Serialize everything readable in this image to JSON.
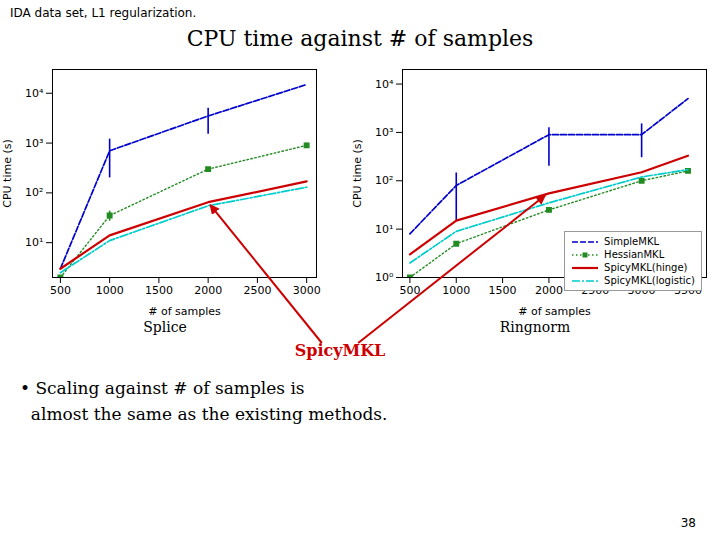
{
  "title": "CPU time against # of samples",
  "subtitle": "IDA data set, L1 regularization.",
  "annotations": [
    {
      "text": "SpicyMKL",
      "color": "#cc0000"
    },
    {
      "text": "• Scaling against # of samples is"
    },
    {
      "text": "  almost the same as the existing methods."
    },
    {
      "text": "38"
    }
  ],
  "chart_data": [
    {
      "type": "line",
      "title": "Splice",
      "xlabel": "# of samples",
      "ylabel": "CPU time (s)",
      "x": [
        500,
        1000,
        2000,
        3000
      ],
      "series": [
        {
          "name": "SimpleMKL",
          "color": "#0000cc",
          "line_style": "dashed",
          "values": [
            3.0,
            700.0,
            3500.0,
            15000.0
          ],
          "error_low": [
            null,
            500,
            2000,
            null
          ],
          "error_high": [
            null,
            500,
            1500,
            null
          ]
        },
        {
          "name": "HessianMKL",
          "color": "#228B22",
          "line_style": "dotted",
          "marker": "square",
          "values": [
            2.0,
            35.0,
            300.0,
            900.0
          ],
          "error_low": [
            null,
            8,
            null,
            100
          ],
          "error_high": [
            null,
            8,
            null,
            100
          ]
        },
        {
          "name": "SpicyMKL(hinge)",
          "color": "#cc0000",
          "line_style": "solid",
          "values": [
            3.0,
            14.0,
            65.0,
            170.0
          ]
        },
        {
          "name": "SpicyMKL(logistic)",
          "color": "#00cccc",
          "line_style": "dashdot",
          "values": [
            2.5,
            11.0,
            55.0,
            130.0
          ]
        }
      ],
      "log": "y",
      "xlim": [
        420,
        3100
      ],
      "xticks": [
        500,
        1000,
        1500,
        2000,
        2500,
        3000
      ],
      "ylim": [
        2,
        30000
      ],
      "yticks": [
        {
          "value": 10,
          "label": "10¹"
        },
        {
          "value": 100,
          "label": "10²"
        },
        {
          "value": 1000,
          "label": "10³"
        },
        {
          "value": 10000,
          "label": "10⁴"
        }
      ],
      "grid": false
    },
    {
      "type": "line",
      "title": "Ringnorm",
      "xlabel": "# of samples",
      "ylabel": "CPU time (s)",
      "x": [
        500,
        1000,
        2000,
        3000,
        3500
      ],
      "series": [
        {
          "name": "SimpleMKL",
          "color": "#0000cc",
          "line_style": "dashed",
          "values": [
            8.0,
            80.0,
            900.0,
            900.0,
            5000.0
          ],
          "error_low": [
            null,
            65,
            700,
            600,
            null
          ],
          "error_high": [
            null,
            65,
            350,
            600,
            null
          ]
        },
        {
          "name": "HessianMKL",
          "color": "#228B22",
          "line_style": "dotted",
          "marker": "square",
          "values": [
            1.0,
            5.0,
            25.0,
            100.0,
            160.0
          ]
        },
        {
          "name": "SpicyMKL(hinge)",
          "color": "#cc0000",
          "line_style": "solid",
          "values": [
            3.0,
            15.0,
            55.0,
            150.0,
            330.0
          ]
        },
        {
          "name": "SpicyMKL(logistic)",
          "color": "#00cccc",
          "line_style": "dashdot",
          "values": [
            2.0,
            9.0,
            35.0,
            120.0,
            170.0
          ]
        }
      ],
      "log": "y",
      "xlim": [
        420,
        3700
      ],
      "xticks": [
        500,
        1000,
        1500,
        2000,
        2500,
        3000,
        3500
      ],
      "ylim": [
        1,
        20000
      ],
      "yticks": [
        {
          "value": 1,
          "label": "10⁰"
        },
        {
          "value": 10,
          "label": "10¹"
        },
        {
          "value": 100,
          "label": "10²"
        },
        {
          "value": 1000,
          "label": "10³"
        },
        {
          "value": 10000,
          "label": "10⁴"
        }
      ],
      "grid": false,
      "legend": "lower right"
    }
  ]
}
